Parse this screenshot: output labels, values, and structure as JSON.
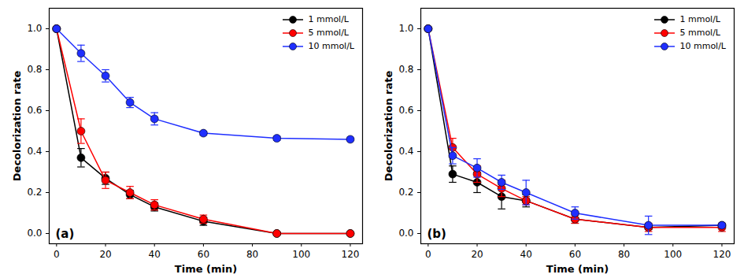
{
  "chart_data": [
    {
      "type": "line",
      "annotation": "(a)",
      "x_label": "Time (min)",
      "y_label": "Decolorization rate",
      "x": [
        0,
        10,
        20,
        30,
        40,
        60,
        90,
        120
      ],
      "xlim": [
        -3,
        125
      ],
      "xticks": [
        0,
        20,
        40,
        60,
        80,
        100,
        120
      ],
      "ylim": [
        -0.05,
        1.1
      ],
      "yticks": [
        {
          "value": 0,
          "label": "0.0"
        },
        {
          "value": 0.2,
          "label": "0.2"
        },
        {
          "value": 0.4,
          "label": "0.4"
        },
        {
          "value": 0.6,
          "label": "0.6"
        },
        {
          "value": 0.8,
          "label": "0.8"
        },
        {
          "value": 1,
          "label": "1.0"
        }
      ],
      "legend": "upper right",
      "marker": "o",
      "line_style": "solid",
      "series": [
        {
          "name": "1 mmol/L",
          "color": "#000000",
          "values": [
            1.0,
            0.37,
            0.27,
            0.19,
            0.13,
            0.06,
            0.0,
            0.0
          ],
          "errors": [
            0,
            0.045,
            0.03,
            0.02,
            0.02,
            0.02,
            0.005,
            0.005
          ]
        },
        {
          "name": "5 mmol/L",
          "color": "#ff0000",
          "values": [
            1.0,
            0.5,
            0.26,
            0.2,
            0.14,
            0.07,
            0.0,
            0.0
          ],
          "errors": [
            0,
            0.06,
            0.04,
            0.03,
            0.025,
            0.02,
            0.005,
            0.005
          ]
        },
        {
          "name": "10 mmol/L",
          "color": "#1f2fff",
          "values": [
            1.0,
            0.88,
            0.77,
            0.64,
            0.56,
            0.49,
            0.465,
            0.46
          ],
          "errors": [
            0,
            0.04,
            0.03,
            0.025,
            0.03,
            0.01,
            0.01,
            0.005
          ]
        }
      ]
    },
    {
      "type": "line",
      "annotation": "(b)",
      "x_label": "Time (min)",
      "y_label": "Decolorization rate",
      "x": [
        0,
        10,
        20,
        30,
        40,
        60,
        90,
        120
      ],
      "xlim": [
        -3,
        125
      ],
      "xticks": [
        0,
        20,
        40,
        60,
        80,
        100,
        120
      ],
      "ylim": [
        -0.05,
        1.1
      ],
      "yticks": [
        {
          "value": 0,
          "label": "0.0"
        },
        {
          "value": 0.2,
          "label": "0.2"
        },
        {
          "value": 0.4,
          "label": "0.4"
        },
        {
          "value": 0.6,
          "label": "0.6"
        },
        {
          "value": 0.8,
          "label": "0.8"
        },
        {
          "value": 1,
          "label": "1.0"
        }
      ],
      "legend": "upper right",
      "marker": "o",
      "line_style": "solid",
      "series": [
        {
          "name": "1 mmol/L",
          "color": "#000000",
          "values": [
            1.0,
            0.29,
            0.25,
            0.18,
            0.16,
            0.07,
            0.03,
            0.04
          ],
          "errors": [
            0,
            0.04,
            0.05,
            0.06,
            0.03,
            0.02,
            0.01,
            0.01
          ]
        },
        {
          "name": "5 mmol/L",
          "color": "#ff0000",
          "values": [
            1.0,
            0.42,
            0.29,
            0.22,
            0.16,
            0.07,
            0.03,
            0.03
          ],
          "errors": [
            0,
            0.045,
            0.04,
            0.04,
            0.02,
            0.02,
            0.02,
            0.02
          ]
        },
        {
          "name": "10 mmol/L",
          "color": "#1f2fff",
          "values": [
            1.0,
            0.38,
            0.32,
            0.25,
            0.2,
            0.1,
            0.04,
            0.04
          ],
          "errors": [
            0,
            0.04,
            0.045,
            0.035,
            0.06,
            0.03,
            0.045,
            0.01
          ]
        }
      ]
    }
  ]
}
